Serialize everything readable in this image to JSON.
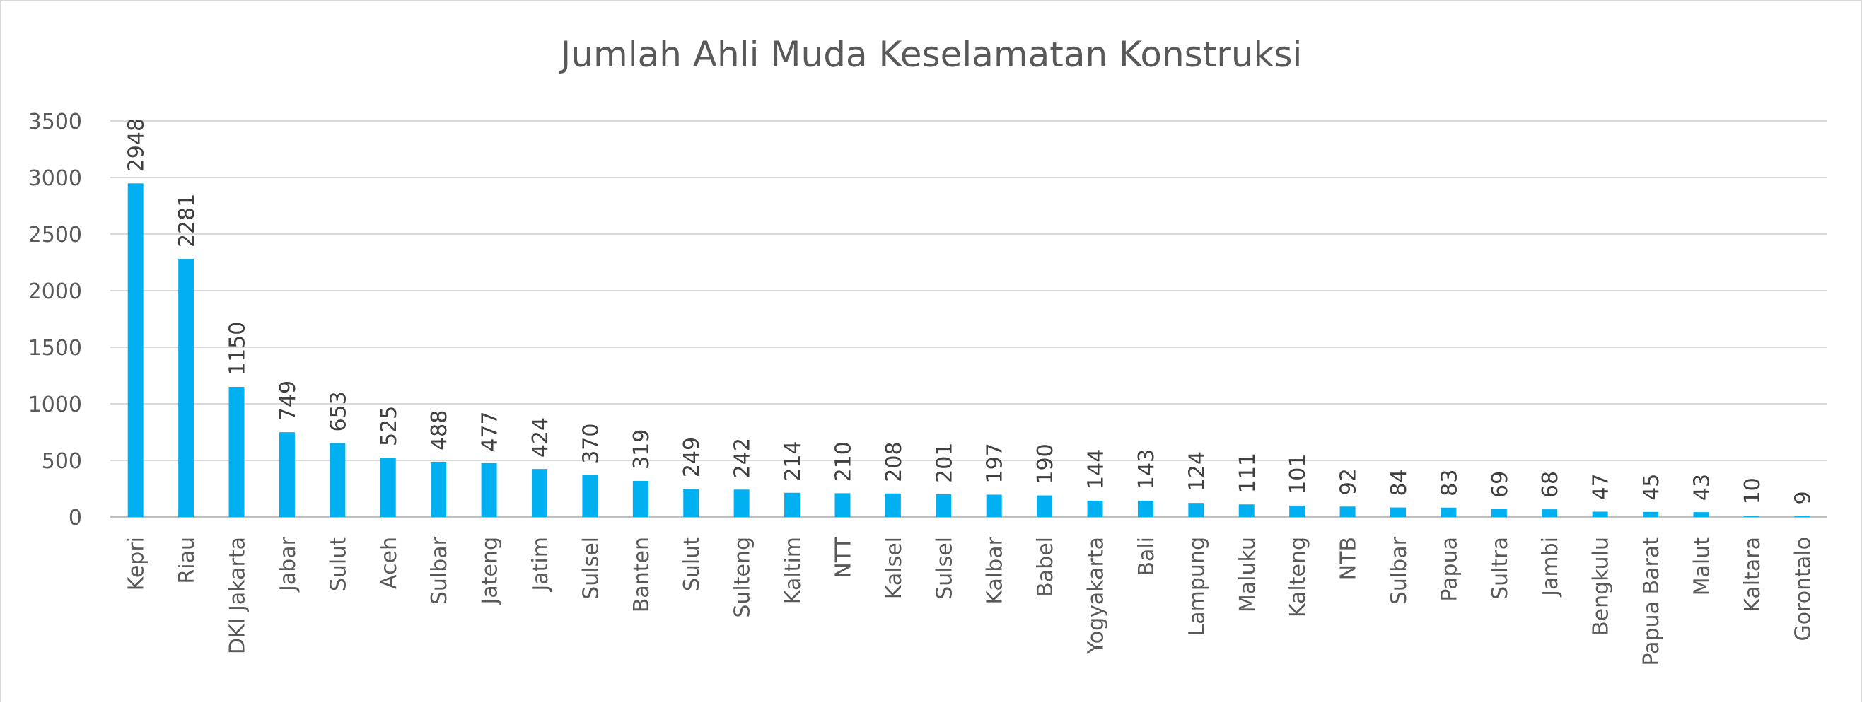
{
  "chart_data": {
    "type": "bar",
    "title": "Jumlah Ahli Muda Keselamatan Konstruksi",
    "xlabel": "",
    "ylabel": "",
    "ylim": [
      0,
      3500
    ],
    "yticks": [
      0,
      500,
      1000,
      1500,
      2000,
      2500,
      3000,
      3500
    ],
    "grid": true,
    "legend": "none",
    "bar_color": "#00b0f0",
    "categories": [
      "Kepri",
      "Riau",
      "DKI Jakarta",
      "Jabar",
      "Sulut",
      "Aceh",
      "Sulbar",
      "Jateng",
      "Jatim",
      "Sulsel",
      "Banten",
      "Sulut",
      "Sulteng",
      "Kaltim",
      "NTT",
      "Kalsel",
      "Sulsel",
      "Kalbar",
      "Babel",
      "Yogyakarta",
      "Bali",
      "Lampung",
      "Maluku",
      "Kalteng",
      "NTB",
      "Sulbar",
      "Papua",
      "Sultra",
      "Jambi",
      "Bengkulu",
      "Papua Barat",
      "Malut",
      "Kaltara",
      "Gorontalo"
    ],
    "values": [
      2948,
      2281,
      1150,
      749,
      653,
      525,
      488,
      477,
      424,
      370,
      319,
      249,
      242,
      214,
      210,
      208,
      201,
      197,
      190,
      144,
      143,
      124,
      111,
      101,
      92,
      84,
      83,
      69,
      68,
      47,
      45,
      43,
      10,
      9
    ]
  }
}
